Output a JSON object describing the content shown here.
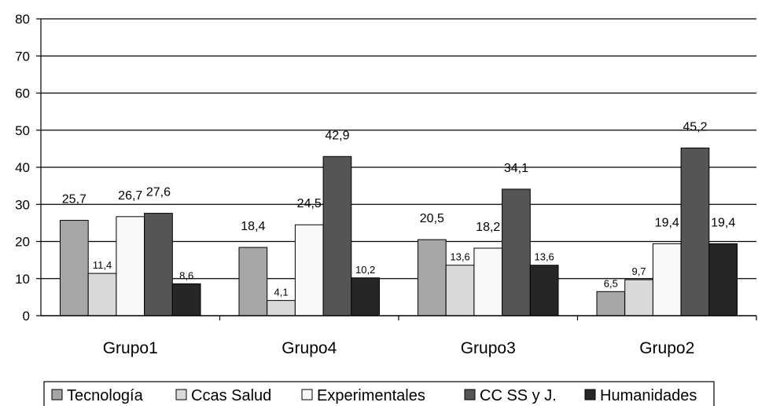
{
  "chart_data": {
    "type": "bar",
    "categories": [
      "Grupo1",
      "Grupo4",
      "Grupo3",
      "Grupo2"
    ],
    "series": [
      {
        "name": "Tecnología",
        "color": "#a6a6a6",
        "values": [
          25.7,
          18.4,
          20.5,
          6.5
        ],
        "labels": [
          "25,7",
          "18,4",
          "20,5",
          "6,5"
        ]
      },
      {
        "name": "Ccas Salud",
        "color": "#d9d9d9",
        "values": [
          11.4,
          4.1,
          13.6,
          9.7
        ],
        "labels": [
          "11,4",
          "4,1",
          "13,6",
          "9,7"
        ]
      },
      {
        "name": "Experimentales",
        "color": "#f8f8f8",
        "values": [
          26.7,
          24.5,
          18.2,
          19.4
        ],
        "labels": [
          "26,7",
          "24,5",
          "18,2",
          "19,4"
        ]
      },
      {
        "name": "CC SS y J.",
        "color": "#555555",
        "values": [
          27.6,
          42.9,
          34.1,
          45.2
        ],
        "labels": [
          "27,6",
          "42,9",
          "34,1",
          "45,2"
        ]
      },
      {
        "name": "Humanidades",
        "color": "#262626",
        "values": [
          8.6,
          10.2,
          13.6,
          19.4
        ],
        "labels": [
          "8,6",
          "10,2",
          "13,6",
          "19,4"
        ]
      }
    ],
    "y_ticks": [
      "0",
      "10",
      "20",
      "30",
      "40",
      "50",
      "60",
      "70",
      "80"
    ],
    "ylim": [
      0,
      80
    ],
    "grid": true,
    "legend_position": "bottom",
    "title": "",
    "xlabel": "",
    "ylabel": ""
  }
}
